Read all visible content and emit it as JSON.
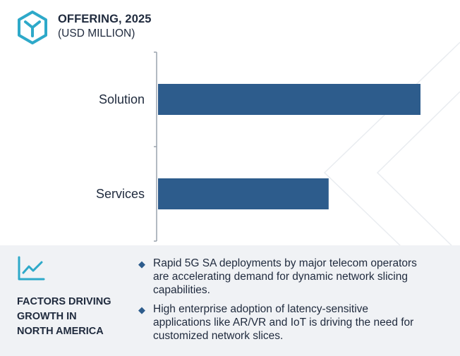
{
  "header": {
    "title": "OFFERING, 2025",
    "subtitle": "(USD MILLION)"
  },
  "colors": {
    "bar": "#2d5c8c",
    "accent": "#2ea9c9",
    "text": "#1f2a3d",
    "panel": "#f0f2f5"
  },
  "icons": {
    "logo": "hexagon-y-logo",
    "factors": "trend-line-icon",
    "bullet": "diamond-bullet"
  },
  "chart_data": {
    "type": "bar",
    "orientation": "horizontal",
    "categories": [
      "Solution",
      "Services"
    ],
    "values": [
      100,
      65
    ],
    "grid": false,
    "xaxis_visible": false
  },
  "factors": {
    "title_lines": [
      "FACTORS DRIVING",
      "GROWTH IN",
      "NORTH AMERICA"
    ],
    "bullets": [
      {
        "lines": [
          "Rapid 5G SA deployments by major telecom operators",
          "are accelerating demand for dynamic network slicing",
          "capabilities."
        ]
      },
      {
        "lines": [
          "High enterprise adoption of latency-sensitive",
          "applications like AR/VR and IoT is driving the need for",
          "customized network slices."
        ]
      }
    ]
  }
}
